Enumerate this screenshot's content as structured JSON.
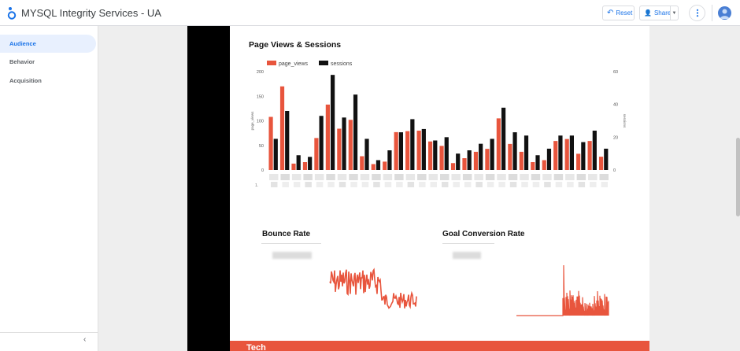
{
  "app": {
    "title": "MYSQL Integrity Services - UA"
  },
  "toolbar": {
    "reset_label": "Reset",
    "share_label": "Share"
  },
  "sidebar": {
    "items": [
      {
        "label": "Audience",
        "active": true
      },
      {
        "label": "Behavior"
      },
      {
        "label": "Acquisition"
      }
    ]
  },
  "colors": {
    "page_views": "#e8553d",
    "sessions": "#111111",
    "accent": "#1a73e8"
  },
  "chart_data": {
    "type": "bar",
    "title": "Page Views & Sessions",
    "legend_position": "top-left",
    "series": [
      {
        "name": "page_views",
        "axis": "left",
        "values": [
          108,
          170,
          13,
          16,
          65,
          133,
          84,
          102,
          28,
          12,
          17,
          77,
          79,
          80,
          58,
          49,
          14,
          24,
          37,
          43,
          105,
          53,
          37,
          16,
          20,
          59,
          63,
          33,
          59,
          27
        ]
      },
      {
        "name": "sessions",
        "axis": "right",
        "values": [
          19,
          36,
          9,
          8,
          33,
          58,
          32,
          46,
          19,
          6,
          12,
          23,
          31,
          25,
          18,
          20,
          10,
          12,
          16,
          19,
          38,
          23,
          21,
          9,
          13,
          21,
          21,
          17,
          24,
          13
        ]
      }
    ],
    "y_left": {
      "label": "page_views",
      "ticks": [
        "0",
        "50",
        "100",
        "150",
        "200"
      ],
      "range": [
        0,
        200
      ]
    },
    "y_right": {
      "label": "sessions",
      "ticks": [
        "0",
        "20",
        "40",
        "60"
      ],
      "range": [
        0,
        60
      ]
    },
    "x_axis_first_label": "1."
  },
  "scorecards": {
    "bounce_title": "Bounce Rate",
    "goal_title": "Goal Conversion Rate"
  },
  "tech_section": {
    "title": "Tech"
  }
}
